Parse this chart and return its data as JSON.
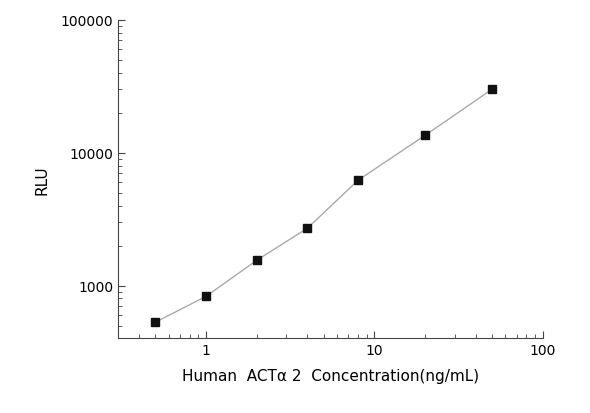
{
  "x_values": [
    0.5,
    1.0,
    2.0,
    4.0,
    8.0,
    20.0,
    50.0
  ],
  "y_values": [
    530,
    830,
    1550,
    2700,
    6200,
    13500,
    30000
  ],
  "xlabel": "Human  ACTα 2  Concentration(ng/mL)",
  "ylabel": "RLU",
  "xlim_log": [
    0.3,
    100
  ],
  "ylim_log": [
    400,
    100000
  ],
  "line_color": "#aaaaaa",
  "marker_color": "#111111",
  "marker": "s",
  "marker_size": 6,
  "linewidth": 1.0,
  "background_color": "#ffffff",
  "xlabel_fontsize": 11,
  "ylabel_fontsize": 11,
  "tick_fontsize": 10,
  "spine_color": "#444444"
}
